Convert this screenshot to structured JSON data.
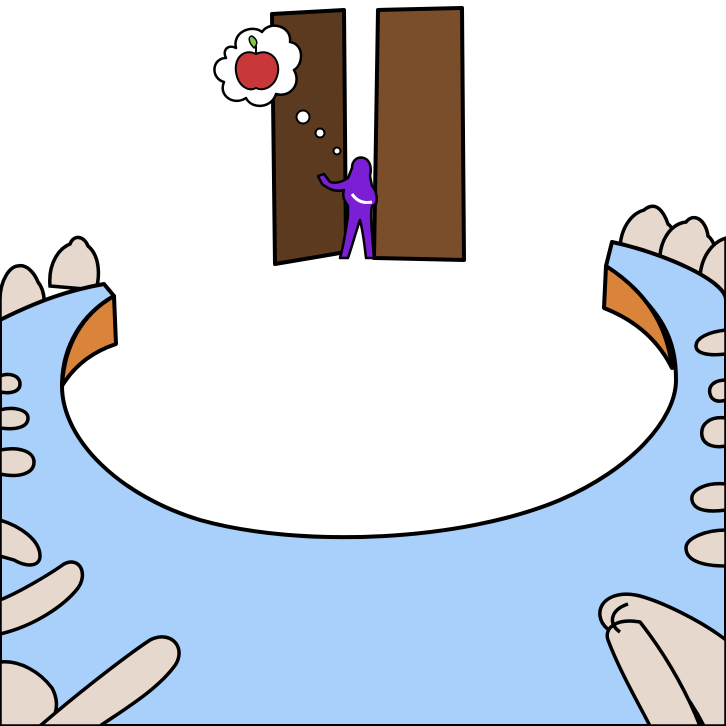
{
  "scene": {
    "description_tag": "illustration",
    "colors": {
      "table": "#a8d0fb",
      "table_edge": "#d9843a",
      "skin": "#e6d8cc",
      "door_left": "#5c3a1f",
      "door_right": "#7a4e2a",
      "figure": "#7a1fd6",
      "apple": "#c8383a",
      "leaf": "#7cc84a",
      "ink": "#000000",
      "background": "#ffffff"
    },
    "icons": {
      "thought_bubble": "thought-bubble-icon",
      "apple": "apple-icon",
      "person": "person-icon",
      "door": "door-icon"
    }
  }
}
